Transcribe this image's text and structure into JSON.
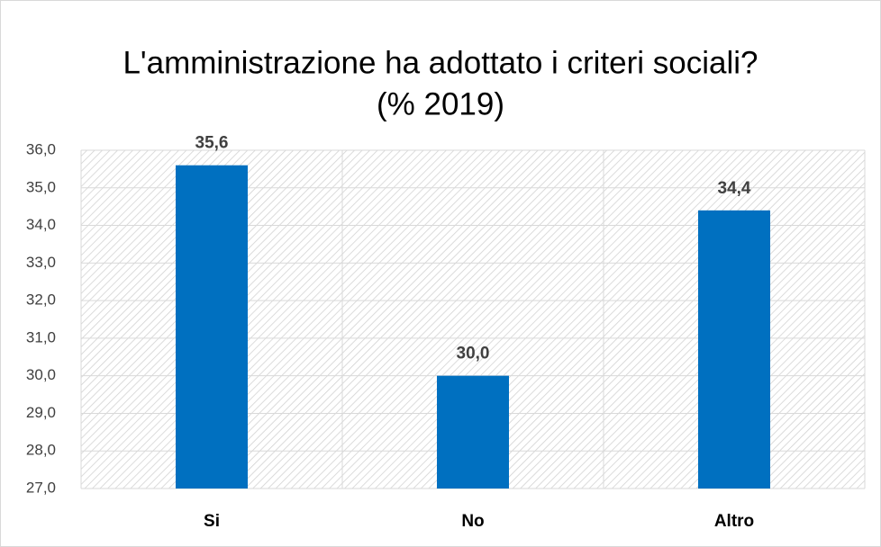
{
  "chart_data": {
    "type": "bar",
    "title": [
      "L'amministrazione ha adottato i criteri sociali?",
      "(% 2019)"
    ],
    "categories": [
      "Si",
      "No",
      "Altro"
    ],
    "values": [
      35.6,
      30.0,
      34.4
    ],
    "value_labels": [
      "35,6",
      "30,0",
      "34,4"
    ],
    "color": "#0070c0",
    "ylim": [
      27,
      36
    ],
    "yticks": [
      {
        "value": 27,
        "label": "27,0"
      },
      {
        "value": 28,
        "label": "28,0"
      },
      {
        "value": 29,
        "label": "29,0"
      },
      {
        "value": 30,
        "label": "30,0"
      },
      {
        "value": 31,
        "label": "31,0"
      },
      {
        "value": 32,
        "label": "32,0"
      },
      {
        "value": 33,
        "label": "33,0"
      },
      {
        "value": 34,
        "label": "34,0"
      },
      {
        "value": 35,
        "label": "35,0"
      },
      {
        "value": 36,
        "label": "36,0"
      }
    ],
    "grid": true
  }
}
